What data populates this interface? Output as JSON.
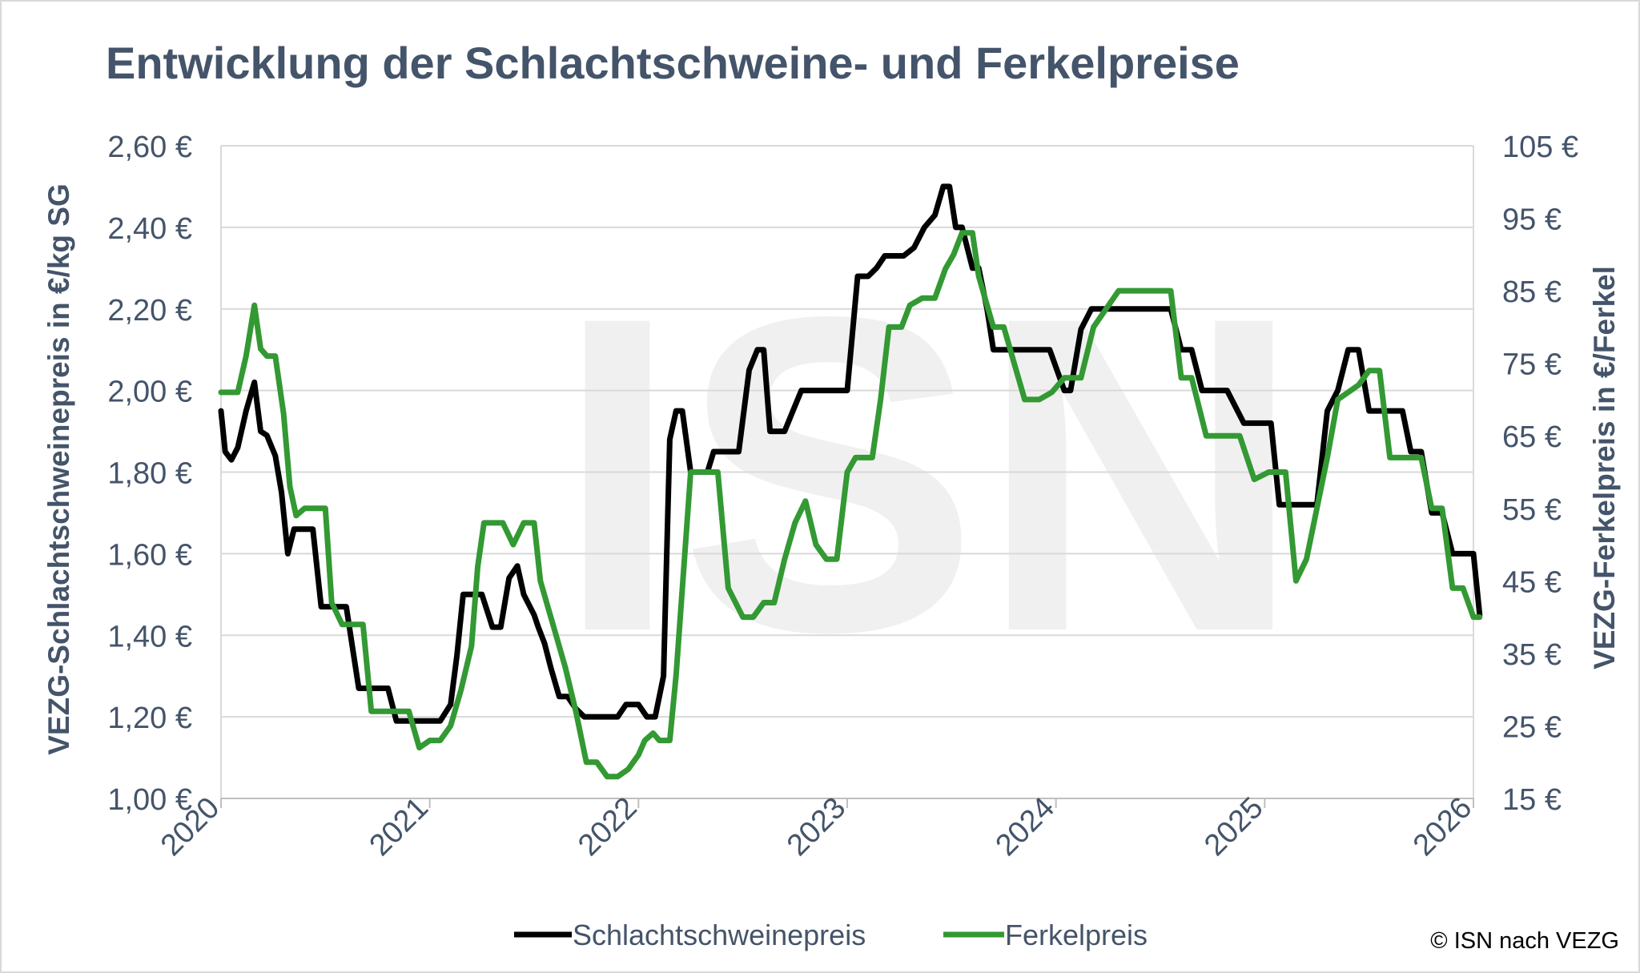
{
  "chart_data": {
    "type": "line",
    "title": "Entwicklung der Schlachtschweine- und Ferkelpreise",
    "ylabel": "VEZG-Schlachtschweinepreis in €/kg SG",
    "y2label": "VEZG-Ferkelpreis in €/Ferkel",
    "xlim": [
      2020,
      2026
    ],
    "ylim": [
      1.0,
      2.6
    ],
    "y2lim": [
      15,
      105
    ],
    "x_ticks": [
      "2020",
      "2021",
      "2022",
      "2023",
      "2024",
      "2025",
      "2026"
    ],
    "y_ticks": [
      "1,00 €",
      "1,20 €",
      "1,40 €",
      "1,60 €",
      "1,80 €",
      "2,00 €",
      "2,20 €",
      "2,40 €",
      "2,60 €"
    ],
    "y2_ticks": [
      "15 €",
      "25 €",
      "35 €",
      "45 €",
      "55 €",
      "65 €",
      "75 €",
      "85 €",
      "95 €",
      "105 €"
    ],
    "grid": true,
    "legend_position": "bottom",
    "watermark": "ISN",
    "credit": "© ISN nach VEZG",
    "series": [
      {
        "name": "Schlachtschweinepreis",
        "axis": "left",
        "color": "#000000",
        "x": [
          2020.0,
          2020.02,
          2020.05,
          2020.08,
          2020.12,
          2020.16,
          2020.19,
          2020.22,
          2020.26,
          2020.29,
          2020.32,
          2020.35,
          2020.38,
          2020.4,
          2020.44,
          2020.48,
          2020.5,
          2020.52,
          2020.56,
          2020.6,
          2020.66,
          2020.68,
          2020.72,
          2020.76,
          2020.8,
          2020.84,
          2020.9,
          2020.95,
          2021.05,
          2021.1,
          2021.13,
          2021.16,
          2021.2,
          2021.25,
          2021.3,
          2021.34,
          2021.38,
          2021.42,
          2021.45,
          2021.5,
          2021.52,
          2021.55,
          2021.58,
          2021.62,
          2021.66,
          2021.7,
          2021.74,
          2021.78,
          2021.85,
          2021.9,
          2021.94,
          2022.0,
          2022.04,
          2022.08,
          2022.12,
          2022.15,
          2022.18,
          2022.21,
          2022.25,
          2022.28,
          2022.3,
          2022.33,
          2022.36,
          2022.4,
          2022.44,
          2022.48,
          2022.53,
          2022.57,
          2022.6,
          2022.63,
          2022.67,
          2022.7,
          2022.74,
          2022.78,
          2022.83,
          2022.88,
          2022.94,
          2023.0,
          2023.05,
          2023.1,
          2023.14,
          2023.18,
          2023.23,
          2023.27,
          2023.32,
          2023.37,
          2023.42,
          2023.46,
          2023.49,
          2023.52,
          2023.55,
          2023.6,
          2023.63,
          2023.67,
          2023.7,
          2023.74,
          2023.76,
          2023.8,
          2023.85,
          2023.9,
          2023.97,
          2024.04,
          2024.07,
          2024.12,
          2024.17,
          2024.25,
          2024.35,
          2024.45,
          2024.55,
          2024.6,
          2024.65,
          2024.7,
          2024.76,
          2024.82,
          2024.9,
          2024.98,
          2025.03,
          2025.07,
          2025.1,
          2025.14,
          2025.2,
          2025.25,
          2025.3,
          2025.35,
          2025.4,
          2025.45,
          2025.5,
          2025.55,
          2025.6,
          2025.66,
          2025.7,
          2025.75,
          2025.8,
          2025.85,
          2025.9,
          2025.96,
          2026.0,
          2026.03
        ],
        "values": [
          1.95,
          1.85,
          1.83,
          1.86,
          1.95,
          2.02,
          1.9,
          1.89,
          1.84,
          1.75,
          1.6,
          1.66,
          1.66,
          1.66,
          1.66,
          1.47,
          1.47,
          1.47,
          1.47,
          1.47,
          1.27,
          1.27,
          1.27,
          1.27,
          1.27,
          1.19,
          1.19,
          1.19,
          1.19,
          1.23,
          1.35,
          1.5,
          1.5,
          1.5,
          1.42,
          1.42,
          1.54,
          1.57,
          1.5,
          1.45,
          1.42,
          1.38,
          1.32,
          1.25,
          1.25,
          1.22,
          1.2,
          1.2,
          1.2,
          1.2,
          1.23,
          1.23,
          1.2,
          1.2,
          1.3,
          1.88,
          1.95,
          1.95,
          1.8,
          1.8,
          1.8,
          1.8,
          1.85,
          1.85,
          1.85,
          1.85,
          2.05,
          2.1,
          2.1,
          1.9,
          1.9,
          1.9,
          1.95,
          2.0,
          2.0,
          2.0,
          2.0,
          2.0,
          2.28,
          2.28,
          2.3,
          2.33,
          2.33,
          2.33,
          2.35,
          2.4,
          2.43,
          2.5,
          2.5,
          2.4,
          2.4,
          2.3,
          2.3,
          2.2,
          2.1,
          2.1,
          2.1,
          2.1,
          2.1,
          2.1,
          2.1,
          2.0,
          2.0,
          2.15,
          2.2,
          2.2,
          2.2,
          2.2,
          2.2,
          2.1,
          2.1,
          2.0,
          2.0,
          2.0,
          1.92,
          1.92,
          1.92,
          1.72,
          1.72,
          1.72,
          1.72,
          1.72,
          1.95,
          2.0,
          2.1,
          2.1,
          1.95,
          1.95,
          1.95,
          1.95,
          1.85,
          1.85,
          1.7,
          1.7,
          1.6,
          1.6,
          1.6,
          1.45
        ]
      },
      {
        "name": "Ferkelpreis",
        "axis": "right",
        "color": "#339933",
        "x": [
          2020.0,
          2020.04,
          2020.08,
          2020.12,
          2020.16,
          2020.19,
          2020.22,
          2020.26,
          2020.3,
          2020.33,
          2020.36,
          2020.4,
          2020.45,
          2020.5,
          2020.53,
          2020.58,
          2020.64,
          2020.68,
          2020.72,
          2020.77,
          2020.82,
          2020.87,
          2020.9,
          2020.95,
          2021.0,
          2021.05,
          2021.1,
          2021.15,
          2021.2,
          2021.23,
          2021.26,
          2021.3,
          2021.35,
          2021.4,
          2021.45,
          2021.5,
          2021.53,
          2021.56,
          2021.6,
          2021.65,
          2021.7,
          2021.75,
          2021.8,
          2021.85,
          2021.9,
          2021.95,
          2022.0,
          2022.03,
          2022.07,
          2022.1,
          2022.15,
          2022.18,
          2022.25,
          2022.28,
          2022.33,
          2022.38,
          2022.43,
          2022.5,
          2022.55,
          2022.6,
          2022.65,
          2022.7,
          2022.75,
          2022.8,
          2022.85,
          2022.9,
          2022.95,
          2023.0,
          2023.04,
          2023.08,
          2023.12,
          2023.16,
          2023.2,
          2023.26,
          2023.3,
          2023.36,
          2023.42,
          2023.47,
          2023.51,
          2023.55,
          2023.6,
          2023.63,
          2023.7,
          2023.75,
          2023.8,
          2023.85,
          2023.92,
          2023.98,
          2024.04,
          2024.08,
          2024.12,
          2024.18,
          2024.3,
          2024.4,
          2024.5,
          2024.55,
          2024.6,
          2024.65,
          2024.72,
          2024.8,
          2024.84,
          2024.88,
          2024.95,
          2025.02,
          2025.06,
          2025.1,
          2025.15,
          2025.2,
          2025.25,
          2025.3,
          2025.35,
          2025.4,
          2025.45,
          2025.5,
          2025.55,
          2025.6,
          2025.65,
          2025.7,
          2025.75,
          2025.8,
          2025.85,
          2025.9,
          2025.95,
          2026.0,
          2026.03
        ],
        "values": [
          71,
          71,
          71,
          76,
          83,
          77,
          76,
          76,
          68,
          58,
          54,
          55,
          55,
          55,
          42,
          39,
          39,
          39,
          27,
          27,
          27,
          27,
          27,
          22,
          23,
          23,
          25,
          30,
          36,
          47,
          53,
          53,
          53,
          50,
          53,
          53,
          45,
          42,
          38,
          33,
          27,
          20,
          20,
          18,
          18,
          19,
          21,
          23,
          24,
          23,
          23,
          32,
          60,
          60,
          60,
          60,
          44,
          40,
          40,
          42,
          42,
          48,
          53,
          56,
          50,
          48,
          48,
          60,
          62,
          62,
          62,
          70,
          80,
          80,
          83,
          84,
          84,
          88,
          90,
          93,
          93,
          87,
          80,
          80,
          75,
          70,
          70,
          71,
          73,
          73,
          73,
          80,
          85,
          85,
          85,
          85,
          73,
          73,
          65,
          65,
          65,
          65,
          59,
          60,
          60,
          60,
          45,
          48,
          55,
          62,
          70,
          71,
          72,
          74,
          74,
          62,
          62,
          62,
          62,
          55,
          55,
          44,
          44,
          40,
          40
        ]
      }
    ]
  }
}
